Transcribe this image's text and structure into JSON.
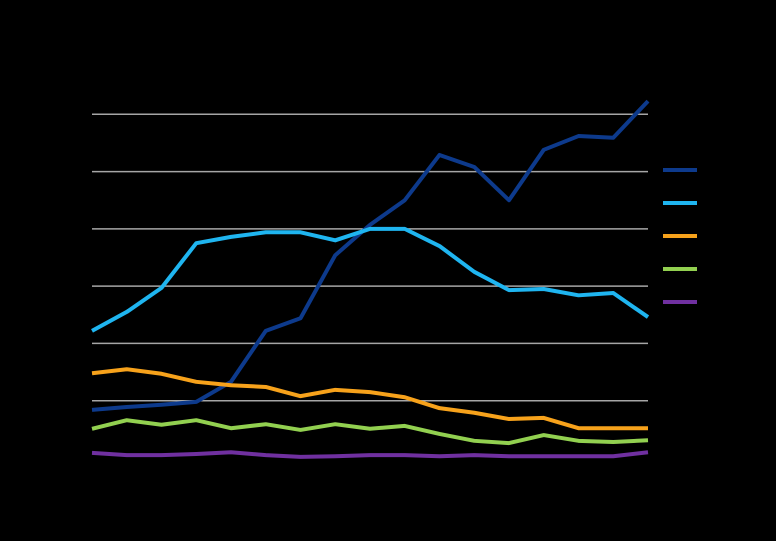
{
  "chart_data": {
    "type": "line",
    "categories": [
      null,
      null,
      null,
      null,
      null,
      null,
      null,
      null,
      null,
      null,
      null,
      null,
      null,
      null,
      null,
      null,
      null
    ],
    "series": [
      {
        "color": "#0d3a8c",
        "values": [
          0.84,
          0.89,
          0.93,
          0.98,
          1.33,
          2.22,
          2.44,
          3.54,
          4.07,
          4.5,
          5.29,
          5.08,
          4.5,
          5.38,
          5.62,
          5.59,
          6.23
        ]
      },
      {
        "color": "#1fb5f0",
        "values": [
          2.22,
          2.55,
          2.97,
          3.75,
          3.86,
          3.94,
          3.94,
          3.8,
          4.0,
          4.0,
          3.7,
          3.25,
          2.93,
          2.95,
          2.84,
          2.88,
          2.46
        ]
      },
      {
        "color": "#f7a21b",
        "values": [
          1.48,
          1.55,
          1.47,
          1.33,
          1.27,
          1.24,
          1.08,
          1.19,
          1.15,
          1.06,
          0.87,
          0.79,
          0.68,
          0.7,
          0.52,
          0.52,
          0.52
        ]
      },
      {
        "color": "#92d050",
        "values": [
          0.51,
          0.66,
          0.58,
          0.66,
          0.52,
          0.59,
          0.49,
          0.59,
          0.51,
          0.56,
          0.42,
          0.3,
          0.26,
          0.4,
          0.3,
          0.28,
          0.31
        ]
      },
      {
        "color": "#7030a0",
        "values": [
          0.09,
          0.05,
          0.05,
          0.07,
          0.1,
          0.05,
          0.02,
          0.03,
          0.05,
          0.05,
          0.03,
          0.05,
          0.03,
          0.03,
          0.03,
          0.03,
          0.1
        ]
      }
    ],
    "ylim": [
      0,
      7
    ],
    "yticks": [
      1,
      2,
      3,
      4,
      5,
      6
    ],
    "grid": true,
    "legend": "right"
  }
}
